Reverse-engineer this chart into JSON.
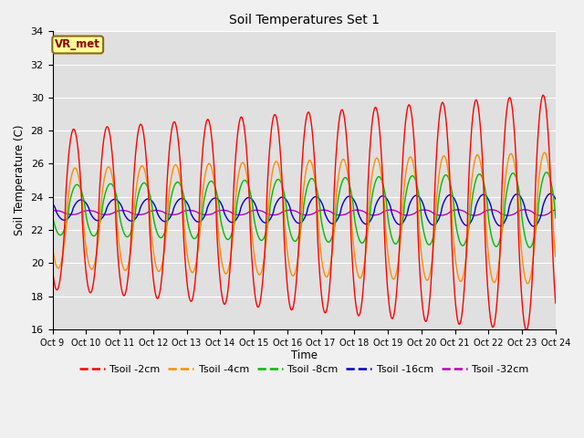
{
  "title": "Soil Temperatures Set 1",
  "xlabel": "Time",
  "ylabel": "Soil Temperature (C)",
  "ylim": [
    16,
    34
  ],
  "background_color": "#f0f0f0",
  "plot_bg_color": "#e0e0e0",
  "annotation_text": "VR_met",
  "annotation_box_color": "#ffff99",
  "annotation_box_edge": "#8B6914",
  "tick_labels": [
    "Oct 9",
    "Oct 10",
    "Oct 11",
    "Oct 12",
    "Oct 13",
    "Oct 14",
    "Oct 15",
    "Oct 16",
    "Oct 17",
    "Oct 18",
    "Oct 19",
    "Oct 20",
    "Oct 21",
    "Oct 22",
    "Oct 23",
    "Oct 24"
  ],
  "series_colors": [
    "#ff0000",
    "#ff8c00",
    "#00bb00",
    "#0000cc",
    "#bb00bb"
  ],
  "series_labels": [
    "Tsoil -2cm",
    "Tsoil -4cm",
    "Tsoil -8cm",
    "Tsoil -16cm",
    "Tsoil -32cm"
  ],
  "num_days": 15,
  "pts_per_day": 144,
  "base_temp": 23.2,
  "grid_color": "#ffffff",
  "yticks": [
    16,
    18,
    20,
    22,
    24,
    26,
    28,
    30,
    32,
    34
  ]
}
